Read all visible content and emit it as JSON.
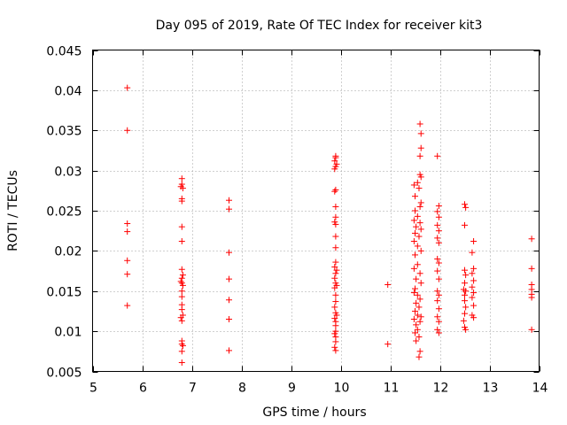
{
  "chart_data": {
    "type": "scatter",
    "title": "Day 095 of 2019, Rate Of TEC Index for receiver kit3",
    "xlabel": "GPS time / hours",
    "ylabel": "ROTI / TECUs",
    "xlim": [
      5,
      14
    ],
    "ylim": [
      0.005,
      0.045
    ],
    "xticks": [
      5,
      6,
      7,
      8,
      9,
      10,
      11,
      12,
      13,
      14
    ],
    "yticks": [
      0.005,
      0.01,
      0.015,
      0.02,
      0.025,
      0.03,
      0.035,
      0.04,
      0.045
    ],
    "xtick_labels": [
      "5",
      "6",
      "7",
      "8",
      "9",
      "10",
      "11",
      "12",
      "13",
      "14"
    ],
    "ytick_labels": [
      "0.005",
      "0.01",
      "0.015",
      "0.02",
      "0.025",
      "0.03",
      "0.035",
      "0.04",
      "0.045"
    ],
    "grid": true,
    "marker": "+",
    "marker_color": "#ff0000",
    "series": [
      {
        "name": "ROTI",
        "points": [
          [
            5.7,
            0.0403
          ],
          [
            5.7,
            0.035
          ],
          [
            5.7,
            0.0234
          ],
          [
            5.7,
            0.0224
          ],
          [
            5.7,
            0.0188
          ],
          [
            5.7,
            0.0171
          ],
          [
            5.7,
            0.0132
          ],
          [
            6.8,
            0.029
          ],
          [
            6.8,
            0.0283
          ],
          [
            6.82,
            0.0278
          ],
          [
            6.78,
            0.028
          ],
          [
            6.8,
            0.0265
          ],
          [
            6.8,
            0.0262
          ],
          [
            6.8,
            0.023
          ],
          [
            6.8,
            0.0212
          ],
          [
            6.8,
            0.0177
          ],
          [
            6.82,
            0.017
          ],
          [
            6.8,
            0.0166
          ],
          [
            6.78,
            0.0162
          ],
          [
            6.8,
            0.016
          ],
          [
            6.82,
            0.0157
          ],
          [
            6.8,
            0.015
          ],
          [
            6.8,
            0.0143
          ],
          [
            6.8,
            0.0133
          ],
          [
            6.8,
            0.0127
          ],
          [
            6.82,
            0.012
          ],
          [
            6.78,
            0.0117
          ],
          [
            6.8,
            0.0113
          ],
          [
            6.8,
            0.0088
          ],
          [
            6.8,
            0.0084
          ],
          [
            6.82,
            0.0082
          ],
          [
            6.8,
            0.0075
          ],
          [
            6.8,
            0.0061
          ],
          [
            7.75,
            0.0263
          ],
          [
            7.75,
            0.0252
          ],
          [
            7.75,
            0.0198
          ],
          [
            7.75,
            0.0165
          ],
          [
            7.75,
            0.0139
          ],
          [
            7.75,
            0.0115
          ],
          [
            7.75,
            0.0076
          ],
          [
            9.9,
            0.0318
          ],
          [
            9.9,
            0.0316
          ],
          [
            9.88,
            0.0312
          ],
          [
            9.92,
            0.0308
          ],
          [
            9.9,
            0.0305
          ],
          [
            9.88,
            0.0302
          ],
          [
            9.9,
            0.0276
          ],
          [
            9.88,
            0.0274
          ],
          [
            9.9,
            0.0255
          ],
          [
            9.9,
            0.0242
          ],
          [
            9.88,
            0.0236
          ],
          [
            9.9,
            0.0233
          ],
          [
            9.9,
            0.0218
          ],
          [
            9.9,
            0.0204
          ],
          [
            9.9,
            0.0186
          ],
          [
            9.88,
            0.018
          ],
          [
            9.92,
            0.0176
          ],
          [
            9.9,
            0.0172
          ],
          [
            9.88,
            0.0166
          ],
          [
            9.9,
            0.016
          ],
          [
            9.92,
            0.0157
          ],
          [
            9.88,
            0.0154
          ],
          [
            9.9,
            0.0145
          ],
          [
            9.9,
            0.0137
          ],
          [
            9.88,
            0.013
          ],
          [
            9.9,
            0.0123
          ],
          [
            9.92,
            0.012
          ],
          [
            9.88,
            0.0116
          ],
          [
            9.9,
            0.0112
          ],
          [
            9.9,
            0.0107
          ],
          [
            9.9,
            0.01
          ],
          [
            9.88,
            0.0097
          ],
          [
            9.9,
            0.0093
          ],
          [
            9.9,
            0.0087
          ],
          [
            9.88,
            0.008
          ],
          [
            9.9,
            0.0076
          ],
          [
            10.95,
            0.0158
          ],
          [
            10.95,
            0.0084
          ],
          [
            11.6,
            0.0358
          ],
          [
            11.62,
            0.0346
          ],
          [
            11.62,
            0.0328
          ],
          [
            11.6,
            0.0318
          ],
          [
            11.6,
            0.0295
          ],
          [
            11.62,
            0.0292
          ],
          [
            11.55,
            0.0285
          ],
          [
            11.48,
            0.0282
          ],
          [
            11.58,
            0.0278
          ],
          [
            11.5,
            0.0268
          ],
          [
            11.62,
            0.026
          ],
          [
            11.6,
            0.0255
          ],
          [
            11.5,
            0.025
          ],
          [
            11.55,
            0.0243
          ],
          [
            11.48,
            0.0238
          ],
          [
            11.6,
            0.0235
          ],
          [
            11.52,
            0.023
          ],
          [
            11.62,
            0.0227
          ],
          [
            11.5,
            0.0222
          ],
          [
            11.58,
            0.0218
          ],
          [
            11.48,
            0.0212
          ],
          [
            11.55,
            0.0206
          ],
          [
            11.62,
            0.02
          ],
          [
            11.5,
            0.0195
          ],
          [
            11.55,
            0.0183
          ],
          [
            11.48,
            0.0178
          ],
          [
            11.6,
            0.0172
          ],
          [
            11.52,
            0.0165
          ],
          [
            11.62,
            0.016
          ],
          [
            11.5,
            0.0153
          ],
          [
            11.48,
            0.0148
          ],
          [
            11.55,
            0.0145
          ],
          [
            11.6,
            0.014
          ],
          [
            11.52,
            0.0135
          ],
          [
            11.58,
            0.013
          ],
          [
            11.5,
            0.0125
          ],
          [
            11.55,
            0.012
          ],
          [
            11.62,
            0.0118
          ],
          [
            11.48,
            0.0115
          ],
          [
            11.6,
            0.0112
          ],
          [
            11.52,
            0.0108
          ],
          [
            11.55,
            0.0102
          ],
          [
            11.5,
            0.0098
          ],
          [
            11.58,
            0.0093
          ],
          [
            11.52,
            0.0088
          ],
          [
            11.6,
            0.0075
          ],
          [
            11.58,
            0.0068
          ],
          [
            11.95,
            0.0318
          ],
          [
            11.98,
            0.0256
          ],
          [
            11.95,
            0.0249
          ],
          [
            11.98,
            0.0242
          ],
          [
            11.95,
            0.0232
          ],
          [
            11.98,
            0.0225
          ],
          [
            11.95,
            0.0216
          ],
          [
            11.98,
            0.021
          ],
          [
            11.95,
            0.019
          ],
          [
            11.98,
            0.0185
          ],
          [
            11.95,
            0.0175
          ],
          [
            11.98,
            0.0165
          ],
          [
            11.95,
            0.015
          ],
          [
            11.98,
            0.0145
          ],
          [
            11.95,
            0.0138
          ],
          [
            11.98,
            0.0128
          ],
          [
            11.95,
            0.0118
          ],
          [
            11.98,
            0.0112
          ],
          [
            11.95,
            0.0102
          ],
          [
            11.98,
            0.0098
          ],
          [
            12.5,
            0.0258
          ],
          [
            12.52,
            0.0254
          ],
          [
            12.5,
            0.0232
          ],
          [
            12.5,
            0.0176
          ],
          [
            12.52,
            0.017
          ],
          [
            12.5,
            0.016
          ],
          [
            12.48,
            0.0152
          ],
          [
            12.52,
            0.015
          ],
          [
            12.5,
            0.0145
          ],
          [
            12.5,
            0.0138
          ],
          [
            12.52,
            0.013
          ],
          [
            12.5,
            0.0122
          ],
          [
            12.48,
            0.0113
          ],
          [
            12.5,
            0.0105
          ],
          [
            12.52,
            0.0102
          ],
          [
            12.68,
            0.0212
          ],
          [
            12.65,
            0.0198
          ],
          [
            12.68,
            0.0178
          ],
          [
            12.65,
            0.0172
          ],
          [
            12.68,
            0.0163
          ],
          [
            12.65,
            0.0155
          ],
          [
            12.68,
            0.0148
          ],
          [
            12.65,
            0.0142
          ],
          [
            12.68,
            0.0132
          ],
          [
            12.65,
            0.012
          ],
          [
            12.68,
            0.0117
          ],
          [
            13.85,
            0.0215
          ],
          [
            13.85,
            0.0178
          ],
          [
            13.85,
            0.0158
          ],
          [
            13.85,
            0.0152
          ],
          [
            13.85,
            0.0146
          ],
          [
            13.85,
            0.0142
          ],
          [
            13.85,
            0.0102
          ]
        ]
      }
    ]
  }
}
